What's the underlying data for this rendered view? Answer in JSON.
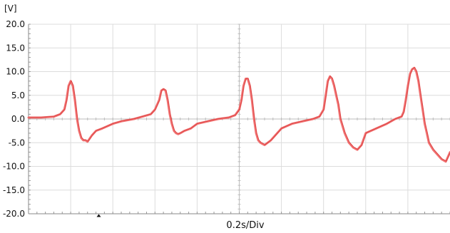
{
  "chart_data": {
    "type": "line",
    "unit_label": "[V]",
    "time_label": "0.2s/Div",
    "y_range": [
      -20,
      20
    ],
    "y_ticks": [
      20,
      15,
      10,
      5,
      0,
      -5,
      -10,
      -15,
      -20
    ],
    "y_tick_labels": [
      "20.0",
      "15.0",
      "10.0",
      "5.0",
      "0.0",
      "-5.0",
      "-10.0",
      "-15.0",
      "-20.0"
    ],
    "x_range": [
      0,
      2.0
    ],
    "x_divisions": 10,
    "grid": true,
    "line_color": "#f06060",
    "series": [
      {
        "x": [
          0.0,
          0.06,
          0.12,
          0.15,
          0.17,
          0.18,
          0.19,
          0.2,
          0.21,
          0.22,
          0.23,
          0.24,
          0.25,
          0.26,
          0.27,
          0.28,
          0.3,
          0.32,
          0.35,
          0.4,
          0.44,
          0.5,
          0.54,
          0.58,
          0.6,
          0.62,
          0.63,
          0.64,
          0.65,
          0.66,
          0.67,
          0.68,
          0.69,
          0.7,
          0.71,
          0.72,
          0.74,
          0.77,
          0.8,
          0.85,
          0.9,
          0.95,
          0.98,
          1.0,
          1.01,
          1.02,
          1.03,
          1.04,
          1.05,
          1.06,
          1.07,
          1.08,
          1.09,
          1.1,
          1.12,
          1.15,
          1.2,
          1.25,
          1.3,
          1.35,
          1.38,
          1.4,
          1.41,
          1.42,
          1.43,
          1.44,
          1.45,
          1.46,
          1.47,
          1.48,
          1.5,
          1.52,
          1.54,
          1.56,
          1.58,
          1.6,
          1.65,
          1.7,
          1.74,
          1.77,
          1.78,
          1.79,
          1.8,
          1.81,
          1.82,
          1.83,
          1.84,
          1.85,
          1.86,
          1.87,
          1.88,
          1.89,
          1.9,
          1.92,
          1.94,
          1.96,
          1.98,
          2.0
        ],
        "y": [
          0.3,
          0.3,
          0.5,
          1.0,
          2.0,
          4.0,
          7.0,
          8.0,
          7.0,
          4.0,
          0.0,
          -2.5,
          -4.0,
          -4.5,
          -4.5,
          -4.8,
          -3.5,
          -2.5,
          -2.0,
          -1.0,
          -0.5,
          0.0,
          0.5,
          1.0,
          2.0,
          4.0,
          6.0,
          6.3,
          6.0,
          4.0,
          1.0,
          -1.0,
          -2.5,
          -3.0,
          -3.2,
          -3.0,
          -2.5,
          -2.0,
          -1.0,
          -0.5,
          0.0,
          0.3,
          0.8,
          2.0,
          4.0,
          7.0,
          8.5,
          8.5,
          7.0,
          4.0,
          0.0,
          -3.0,
          -4.5,
          -5.0,
          -5.5,
          -4.5,
          -2.0,
          -1.0,
          -0.5,
          0.0,
          0.5,
          2.0,
          5.0,
          8.0,
          9.0,
          8.5,
          7.0,
          5.0,
          3.0,
          0.0,
          -3.0,
          -5.0,
          -6.0,
          -6.5,
          -5.5,
          -3.0,
          -2.0,
          -1.0,
          0.0,
          0.5,
          1.5,
          4.0,
          7.0,
          9.5,
          10.5,
          10.8,
          10.0,
          8.0,
          5.0,
          2.0,
          -1.0,
          -3.0,
          -5.0,
          -6.5,
          -7.5,
          -8.5,
          -9.0,
          -7.0
        ]
      }
    ]
  }
}
